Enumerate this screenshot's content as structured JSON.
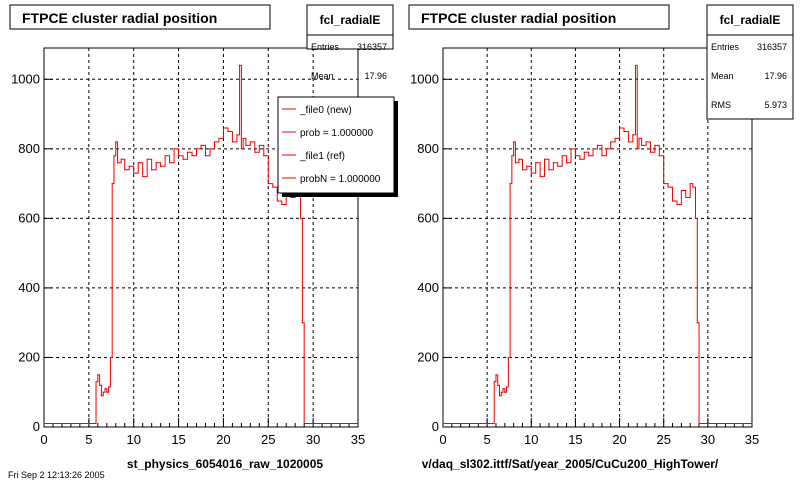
{
  "chart_data": [
    {
      "type": "line",
      "title": "FTPCE cluster radial position",
      "xlabel": "st_physics_6054016_raw_1020005",
      "ylabel": "",
      "xlim": [
        0,
        35
      ],
      "ylim": [
        0,
        1090
      ],
      "x_ticks": [
        0,
        5,
        10,
        15,
        20,
        25,
        30,
        35
      ],
      "y_ticks": [
        0,
        200,
        400,
        600,
        800,
        1000
      ],
      "grid": true,
      "color": "#ee0000",
      "x": [
        0,
        5.6,
        5.8,
        6.0,
        6.2,
        6.4,
        6.6,
        6.8,
        7.0,
        7.2,
        7.4,
        7.6,
        7.8,
        8.0,
        8.2,
        8.6,
        9.0,
        9.5,
        10,
        10.5,
        11,
        11.5,
        12,
        12.5,
        13,
        13.5,
        14,
        14.5,
        15,
        15.5,
        16,
        16.5,
        17,
        17.5,
        18,
        18.5,
        19,
        19.5,
        20,
        20.5,
        21,
        21.5,
        21.8,
        22.0,
        22.2,
        22.5,
        23,
        23.5,
        24,
        24.5,
        25,
        25.5,
        26,
        26.5,
        27,
        27.5,
        28,
        28.3,
        28.6,
        28.8,
        29.0,
        35
      ],
      "values": [
        10,
        10,
        130,
        150,
        120,
        90,
        100,
        110,
        100,
        115,
        200,
        700,
        780,
        820,
        760,
        770,
        740,
        750,
        730,
        760,
        720,
        770,
        740,
        760,
        750,
        780,
        760,
        800,
        780,
        770,
        790,
        780,
        800,
        810,
        780,
        800,
        820,
        830,
        860,
        850,
        820,
        840,
        1040,
        800,
        830,
        810,
        820,
        790,
        810,
        780,
        700,
        690,
        650,
        640,
        680,
        660,
        700,
        690,
        600,
        300,
        10,
        10
      ],
      "stats": {
        "name": "fcl_radialE",
        "rows": [
          [
            "Entries",
            "316357"
          ],
          [
            "Mean",
            "17.96"
          ]
        ]
      },
      "legend": [
        "_file0 (new)",
        "prob = 1.000000",
        "_file1 (ref)",
        "probN = 1.000000"
      ]
    },
    {
      "type": "line",
      "title": "FTPCE cluster radial position",
      "xlabel": "v/daq_sl302.ittf/Sat/year_2005/CuCu200_HighTower/",
      "ylabel": "",
      "xlim": [
        0,
        35
      ],
      "ylim": [
        0,
        1090
      ],
      "x_ticks": [
        0,
        5,
        10,
        15,
        20,
        25,
        30,
        35
      ],
      "y_ticks": [
        0,
        200,
        400,
        600,
        800,
        1000
      ],
      "grid": true,
      "color": "#ee0000",
      "x": [
        0,
        5.6,
        5.8,
        6.0,
        6.2,
        6.4,
        6.6,
        6.8,
        7.0,
        7.2,
        7.4,
        7.6,
        7.8,
        8.0,
        8.2,
        8.6,
        9.0,
        9.5,
        10,
        10.5,
        11,
        11.5,
        12,
        12.5,
        13,
        13.5,
        14,
        14.5,
        15,
        15.5,
        16,
        16.5,
        17,
        17.5,
        18,
        18.5,
        19,
        19.5,
        20,
        20.5,
        21,
        21.5,
        21.8,
        22.0,
        22.2,
        22.5,
        23,
        23.5,
        24,
        24.5,
        25,
        25.5,
        26,
        26.5,
        27,
        27.5,
        28,
        28.3,
        28.6,
        28.8,
        29.0,
        35
      ],
      "values": [
        10,
        10,
        130,
        150,
        120,
        90,
        100,
        110,
        100,
        115,
        200,
        700,
        780,
        820,
        760,
        770,
        740,
        750,
        730,
        760,
        720,
        770,
        740,
        760,
        750,
        780,
        760,
        800,
        780,
        770,
        790,
        780,
        800,
        810,
        780,
        800,
        820,
        830,
        860,
        850,
        820,
        840,
        1040,
        800,
        830,
        810,
        820,
        790,
        810,
        780,
        700,
        690,
        650,
        640,
        680,
        660,
        700,
        690,
        600,
        300,
        10,
        10
      ],
      "stats": {
        "name": "fcl_radialE",
        "rows": [
          [
            "Entries",
            "316357"
          ],
          [
            "Mean",
            "17.96"
          ],
          [
            "RMS",
            "5.973"
          ]
        ]
      },
      "legend": []
    }
  ],
  "footer_text": "Fri Sep 2 12:13:26 2005"
}
